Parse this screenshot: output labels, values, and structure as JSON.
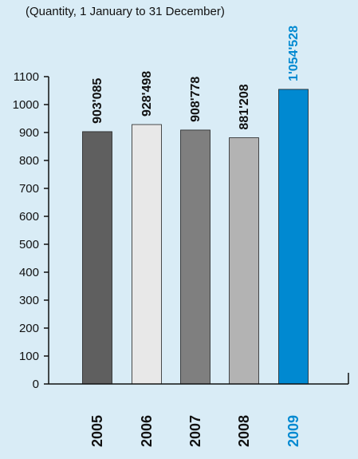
{
  "chart_data": {
    "type": "bar",
    "subtitle": "(Quantity, 1 January to 31 December)",
    "categories": [
      "2005",
      "2006",
      "2007",
      "2008",
      "2009"
    ],
    "values": [
      903.085,
      928.498,
      908.778,
      881.208,
      1054.528
    ],
    "data_labels": [
      "903'085",
      "928'498",
      "908'778",
      "881'208",
      "1'054'528"
    ],
    "bar_colors": [
      "#5f5f5f",
      "#e8e8e8",
      "#7f7f7f",
      "#b3b3b3",
      "#0089d1"
    ],
    "label_colors": [
      "#111111",
      "#111111",
      "#111111",
      "#111111",
      "#0089d1"
    ],
    "ylim": [
      0,
      1100
    ],
    "yticks": [
      0,
      100,
      200,
      300,
      400,
      500,
      600,
      700,
      800,
      900,
      1000,
      1100
    ],
    "grid": false,
    "background": "#d9ecf6",
    "axis_color": "#111111"
  }
}
